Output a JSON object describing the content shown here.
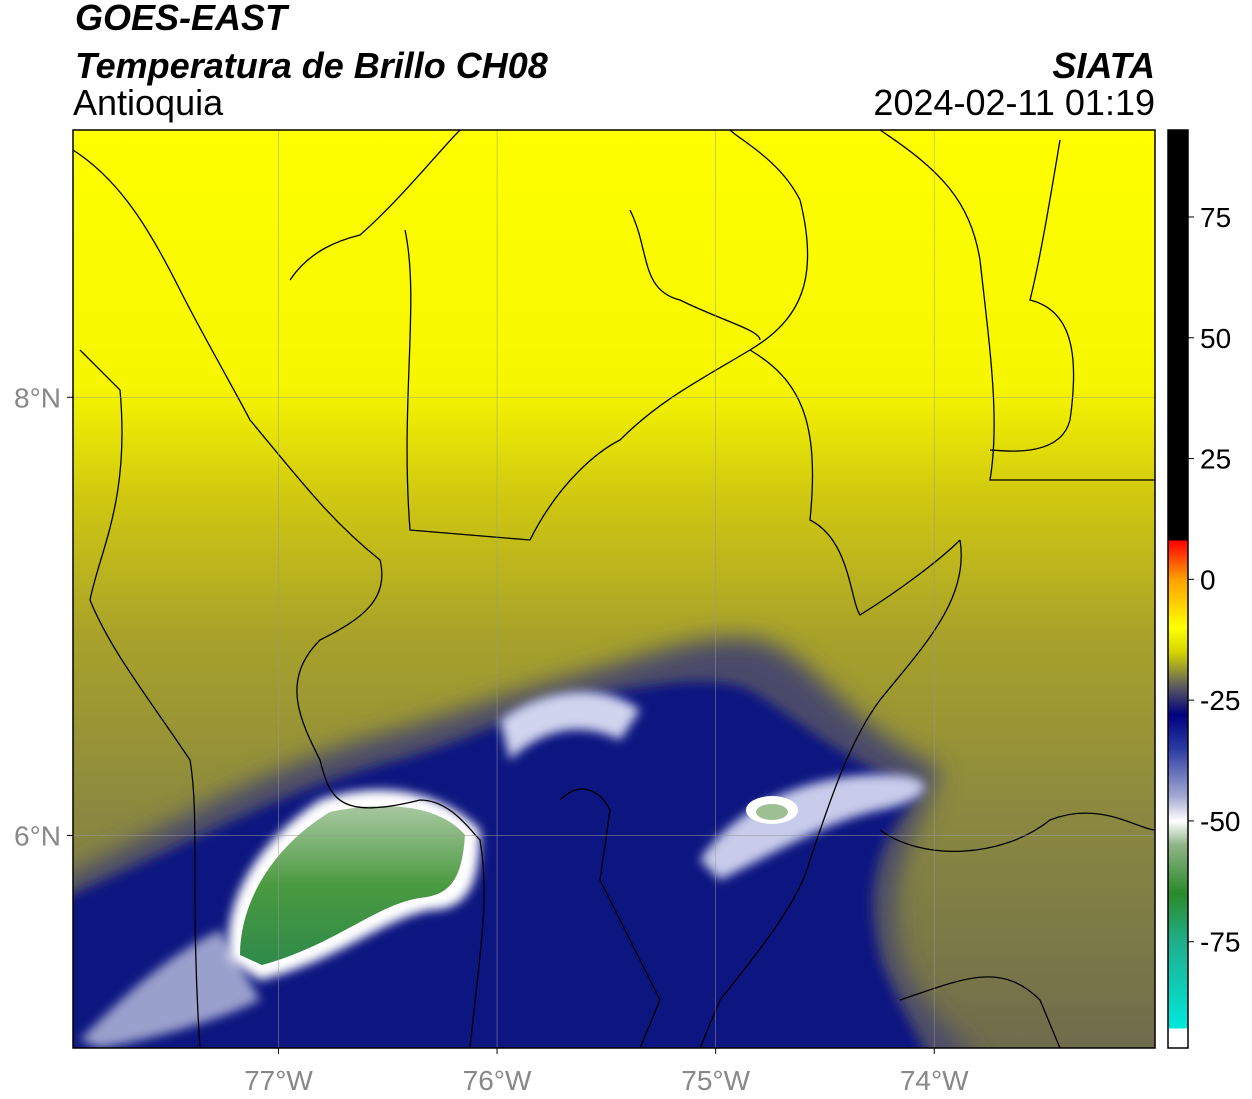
{
  "header": {
    "title": "GOES-EAST",
    "subtitle": "Temperatura de Brillo CH08",
    "region": "Antioquia",
    "source": "SIATA",
    "timestamp": "2024-02-11 01:19"
  },
  "map": {
    "xlim": [
      -77.94,
      -72.99
    ],
    "ylim": [
      5.03,
      9.22
    ],
    "xticks": [
      {
        "value": -77,
        "label": "77°W"
      },
      {
        "value": -76,
        "label": "76°W"
      },
      {
        "value": -75,
        "label": "75°W"
      },
      {
        "value": -74,
        "label": "74°W"
      }
    ],
    "yticks": [
      {
        "value": 8,
        "label": "8°N"
      },
      {
        "value": 6,
        "label": "6°N"
      }
    ],
    "grid": true
  },
  "colorbar": {
    "lim": [
      -97,
      93
    ],
    "ticks": [
      -75,
      -50,
      -25,
      0,
      25,
      50,
      75
    ],
    "colormap": [
      {
        "value": -97,
        "color": "#ffffff"
      },
      {
        "value": -93,
        "color": "#ffffff"
      },
      {
        "value": -93,
        "color": "#00e8dc"
      },
      {
        "value": -75,
        "color": "#1fae8c"
      },
      {
        "value": -65,
        "color": "#2a8a2a"
      },
      {
        "value": -55,
        "color": "#90b488"
      },
      {
        "value": -50,
        "color": "#ffffff"
      },
      {
        "value": -45,
        "color": "#a4aad2"
      },
      {
        "value": -35,
        "color": "#2a3aa2"
      },
      {
        "value": -28,
        "color": "#000080"
      },
      {
        "value": -22,
        "color": "#5e5e5e"
      },
      {
        "value": -15,
        "color": "#d6d600"
      },
      {
        "value": -10,
        "color": "#ffff00"
      },
      {
        "value": 0,
        "color": "#ffa000"
      },
      {
        "value": 8,
        "color": "#ff0000"
      },
      {
        "value": 8,
        "color": "#000000"
      },
      {
        "value": 93,
        "color": "#000000"
      }
    ]
  }
}
